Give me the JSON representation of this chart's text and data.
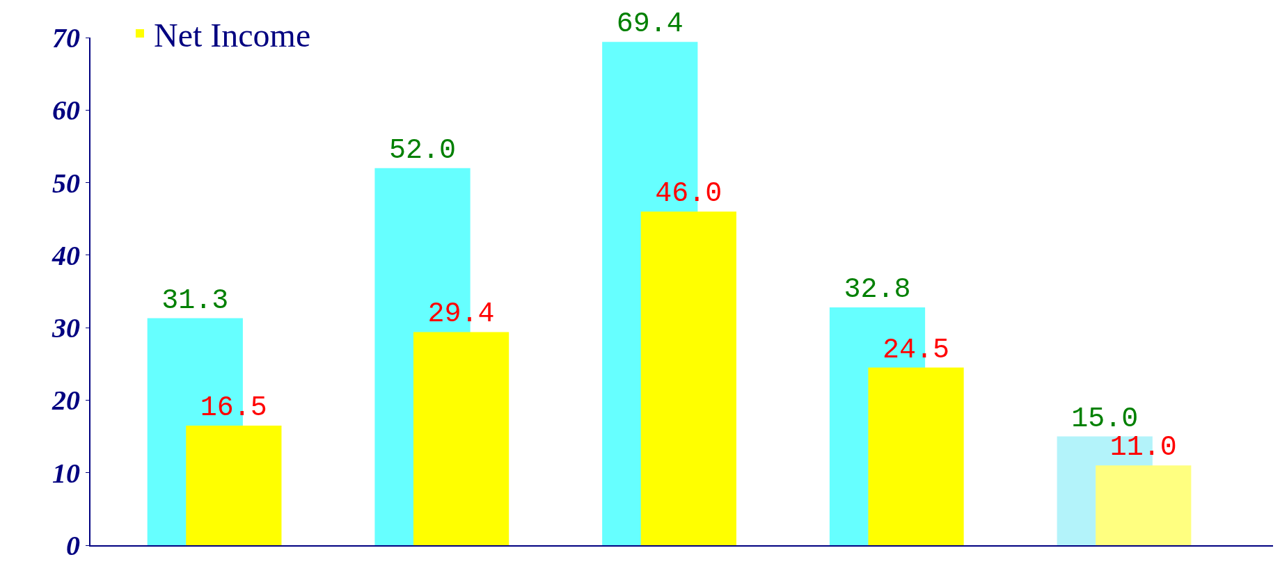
{
  "chart_data": {
    "type": "bar",
    "categories": [
      null,
      null,
      null,
      null,
      null
    ],
    "series": [
      {
        "colors": [
          "#66ffff",
          "#66ffff",
          "#66ffff",
          "#66ffff",
          "#b3f3fa"
        ],
        "values": [
          31.3,
          52.0,
          69.4,
          32.8,
          15.0
        ],
        "value_labels": [
          "31.3",
          "52.0",
          "69.4",
          "32.8",
          "15.0"
        ]
      },
      {
        "name": "Net Income",
        "colors": [
          "#ffff00",
          "#ffff00",
          "#ffff00",
          "#ffff00",
          "#ffff80"
        ],
        "values": [
          16.5,
          29.4,
          46.0,
          24.5,
          11.0
        ],
        "value_labels": [
          "16.5",
          "29.4",
          "46.0",
          "24.5",
          "11.0"
        ]
      }
    ],
    "ylim": [
      0,
      70
    ],
    "yticks": [
      0,
      10,
      20,
      30,
      40,
      50,
      60,
      70
    ],
    "legend": "top left"
  }
}
